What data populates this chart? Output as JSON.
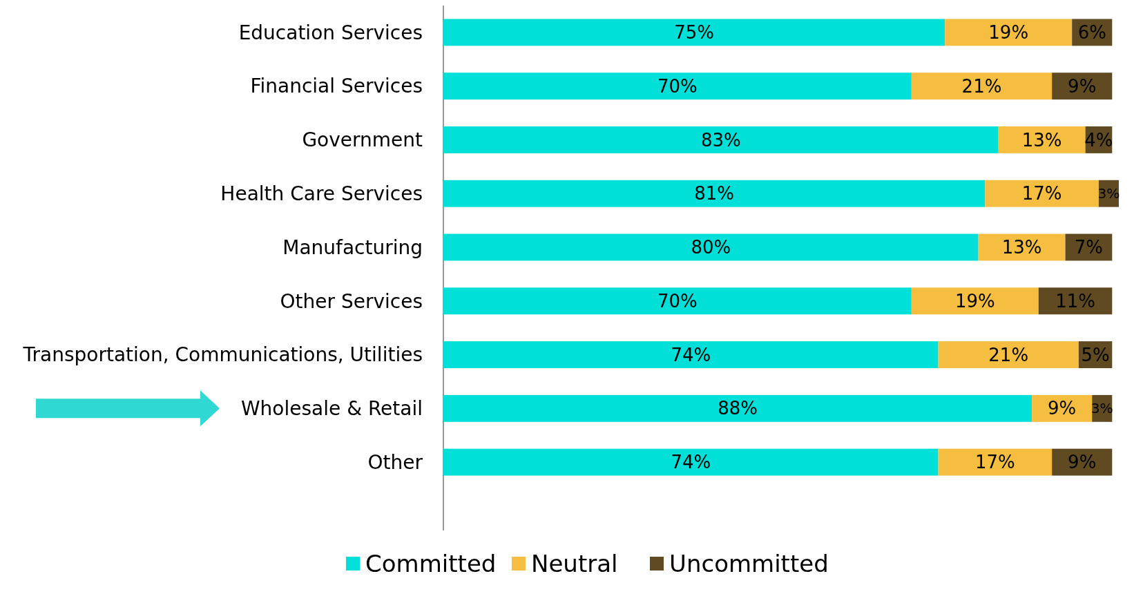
{
  "chart_data": {
    "type": "bar",
    "orientation": "horizontal",
    "stacked": true,
    "legend": "bottom",
    "categories": [
      "Education Services",
      "Financial Services",
      "Government",
      "Health Care Services",
      "Manufacturing",
      "Other Services",
      "Transportation, Communications, Utilities",
      "Wholesale & Retail",
      "Other"
    ],
    "series": [
      {
        "name": "Committed",
        "color": "#00e0d8",
        "values": [
          75,
          70,
          83,
          81,
          80,
          70,
          74,
          88,
          74
        ],
        "value_labels": [
          "75%",
          "70%",
          "83%",
          "81%",
          "80%",
          "70%",
          "74%",
          "88%",
          "74%"
        ]
      },
      {
        "name": "Neutral",
        "color": "#f5be40",
        "values": [
          19,
          21,
          13,
          17,
          13,
          19,
          21,
          9,
          17
        ],
        "value_labels": [
          "19%",
          "21%",
          "13%",
          "17%",
          "13%",
          "19%",
          "21%",
          "9%",
          "17%"
        ]
      },
      {
        "name": "Uncommitted",
        "color": "#604a22",
        "values": [
          6,
          9,
          4,
          3,
          7,
          11,
          5,
          3,
          9
        ],
        "value_labels": [
          "6%",
          "9%",
          "4%",
          "3%",
          "7%",
          "11%",
          "5%",
          "3%",
          "9%"
        ]
      }
    ]
  }
}
